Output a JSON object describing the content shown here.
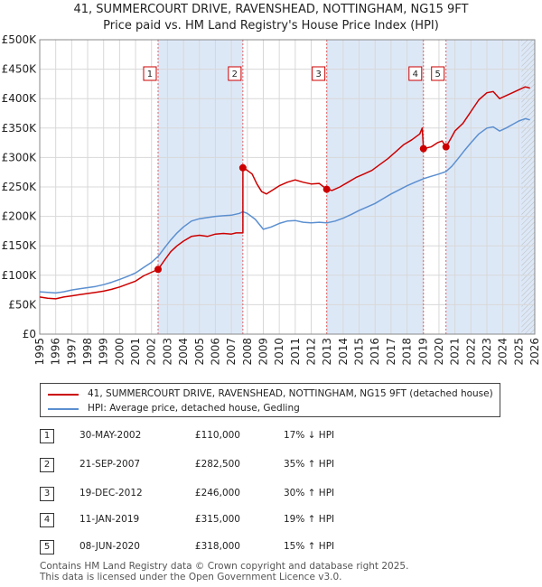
{
  "title_line1": "41, SUMMERCOURT DRIVE, RAVENSHEAD, NOTTINGHAM, NG15 9FT",
  "title_line2": "Price paid vs. HM Land Registry's House Price Index (HPI)",
  "chart_data": {
    "type": "line",
    "ylim": [
      0,
      500000
    ],
    "xlim": [
      1995,
      2026
    ],
    "y_ticks": [
      {
        "value": 0,
        "label": "£0"
      },
      {
        "value": 50000,
        "label": "£50K"
      },
      {
        "value": 100000,
        "label": "£100K"
      },
      {
        "value": 150000,
        "label": "£150K"
      },
      {
        "value": 200000,
        "label": "£200K"
      },
      {
        "value": 250000,
        "label": "£250K"
      },
      {
        "value": 300000,
        "label": "£300K"
      },
      {
        "value": 350000,
        "label": "£350K"
      },
      {
        "value": 400000,
        "label": "£400K"
      },
      {
        "value": 450000,
        "label": "£450K"
      },
      {
        "value": 500000,
        "label": "£500K"
      }
    ],
    "x_ticks": [
      1995,
      1996,
      1997,
      1998,
      1999,
      2000,
      2001,
      2002,
      2003,
      2004,
      2005,
      2006,
      2007,
      2008,
      2009,
      2010,
      2011,
      2012,
      2013,
      2014,
      2015,
      2016,
      2017,
      2018,
      2019,
      2020,
      2021,
      2022,
      2023,
      2024,
      2025,
      2026
    ],
    "colors": {
      "property": "#cc0000",
      "hpi": "#5b8fd0",
      "vline": "#e06060",
      "shade": "#dde8f7"
    },
    "shaded_spans": [
      [
        2002.41,
        2007.72
      ],
      [
        2012.97,
        2019.03
      ],
      [
        2020.44,
        2026
      ]
    ],
    "forecast_from": 2025.17,
    "series": [
      {
        "name": "41, SUMMERCOURT DRIVE, RAVENSHEAD, NOTTINGHAM, NG15 9FT (detached house)",
        "color": "#cc0000",
        "points": [
          [
            1995,
            63000
          ],
          [
            1995.5,
            61000
          ],
          [
            1996,
            60000
          ],
          [
            1996.5,
            63000
          ],
          [
            1997,
            65000
          ],
          [
            1997.5,
            67000
          ],
          [
            1998,
            69000
          ],
          [
            1998.5,
            71000
          ],
          [
            1999,
            73000
          ],
          [
            1999.5,
            76000
          ],
          [
            2000,
            80000
          ],
          [
            2000.5,
            85000
          ],
          [
            2001,
            90000
          ],
          [
            2001.5,
            99000
          ],
          [
            2002,
            105000
          ],
          [
            2002.41,
            110000
          ],
          [
            2002.8,
            125000
          ],
          [
            2003.2,
            140000
          ],
          [
            2003.6,
            150000
          ],
          [
            2004,
            158000
          ],
          [
            2004.5,
            166000
          ],
          [
            2005,
            168000
          ],
          [
            2005.5,
            166000
          ],
          [
            2006,
            170000
          ],
          [
            2006.5,
            171000
          ],
          [
            2007,
            170000
          ],
          [
            2007.3,
            172000
          ],
          [
            2007.72,
            172000
          ],
          [
            2007.72,
            282500
          ],
          [
            2008,
            278000
          ],
          [
            2008.3,
            272000
          ],
          [
            2008.6,
            255000
          ],
          [
            2008.9,
            242000
          ],
          [
            2009.2,
            238000
          ],
          [
            2009.6,
            245000
          ],
          [
            2010,
            252000
          ],
          [
            2010.5,
            258000
          ],
          [
            2011,
            262000
          ],
          [
            2011.5,
            258000
          ],
          [
            2012,
            255000
          ],
          [
            2012.5,
            256000
          ],
          [
            2012.97,
            246000
          ],
          [
            2013.3,
            244000
          ],
          [
            2013.8,
            250000
          ],
          [
            2014.3,
            258000
          ],
          [
            2014.8,
            266000
          ],
          [
            2015.3,
            272000
          ],
          [
            2015.8,
            278000
          ],
          [
            2016.3,
            288000
          ],
          [
            2016.8,
            298000
          ],
          [
            2017.3,
            310000
          ],
          [
            2017.8,
            322000
          ],
          [
            2018.3,
            330000
          ],
          [
            2018.8,
            340000
          ],
          [
            2018.95,
            350000
          ],
          [
            2019.03,
            315000
          ],
          [
            2019.5,
            318000
          ],
          [
            2019.9,
            325000
          ],
          [
            2020.2,
            328000
          ],
          [
            2020.44,
            318000
          ],
          [
            2020.7,
            330000
          ],
          [
            2021,
            345000
          ],
          [
            2021.5,
            358000
          ],
          [
            2022,
            378000
          ],
          [
            2022.5,
            398000
          ],
          [
            2023,
            410000
          ],
          [
            2023.4,
            412000
          ],
          [
            2023.8,
            400000
          ],
          [
            2024.2,
            405000
          ],
          [
            2024.6,
            410000
          ],
          [
            2025,
            415000
          ],
          [
            2025.4,
            420000
          ],
          [
            2025.7,
            418000
          ]
        ]
      },
      {
        "name": "HPI: Average price, detached house, Gedling",
        "color": "#5b8fd0",
        "points": [
          [
            1995,
            72000
          ],
          [
            1995.5,
            71000
          ],
          [
            1996,
            70000
          ],
          [
            1996.5,
            72000
          ],
          [
            1997,
            75000
          ],
          [
            1997.5,
            77000
          ],
          [
            1998,
            79000
          ],
          [
            1998.5,
            81000
          ],
          [
            1999,
            84000
          ],
          [
            1999.5,
            88000
          ],
          [
            2000,
            93000
          ],
          [
            2000.5,
            98000
          ],
          [
            2001,
            104000
          ],
          [
            2001.5,
            113000
          ],
          [
            2002,
            122000
          ],
          [
            2002.41,
            132000
          ],
          [
            2002.8,
            146000
          ],
          [
            2003.2,
            160000
          ],
          [
            2003.6,
            172000
          ],
          [
            2004,
            182000
          ],
          [
            2004.5,
            192000
          ],
          [
            2005,
            196000
          ],
          [
            2005.5,
            198000
          ],
          [
            2006,
            200000
          ],
          [
            2006.5,
            201000
          ],
          [
            2007,
            202000
          ],
          [
            2007.5,
            205000
          ],
          [
            2007.72,
            208000
          ],
          [
            2008,
            205000
          ],
          [
            2008.5,
            195000
          ],
          [
            2009,
            178000
          ],
          [
            2009.5,
            182000
          ],
          [
            2010,
            188000
          ],
          [
            2010.5,
            192000
          ],
          [
            2011,
            193000
          ],
          [
            2011.5,
            190000
          ],
          [
            2012,
            189000
          ],
          [
            2012.5,
            190000
          ],
          [
            2012.97,
            189000
          ],
          [
            2013.5,
            192000
          ],
          [
            2014,
            197000
          ],
          [
            2014.5,
            203000
          ],
          [
            2015,
            210000
          ],
          [
            2015.5,
            216000
          ],
          [
            2016,
            222000
          ],
          [
            2016.5,
            230000
          ],
          [
            2017,
            238000
          ],
          [
            2017.5,
            245000
          ],
          [
            2018,
            252000
          ],
          [
            2018.5,
            258000
          ],
          [
            2019.03,
            264000
          ],
          [
            2019.5,
            268000
          ],
          [
            2020,
            272000
          ],
          [
            2020.44,
            276000
          ],
          [
            2020.8,
            285000
          ],
          [
            2021.2,
            298000
          ],
          [
            2021.6,
            312000
          ],
          [
            2022,
            325000
          ],
          [
            2022.5,
            340000
          ],
          [
            2023,
            350000
          ],
          [
            2023.4,
            352000
          ],
          [
            2023.8,
            345000
          ],
          [
            2024.2,
            350000
          ],
          [
            2024.6,
            356000
          ],
          [
            2025,
            362000
          ],
          [
            2025.4,
            366000
          ],
          [
            2025.7,
            364000
          ]
        ]
      }
    ],
    "sales": [
      {
        "id": "1",
        "x": 2002.41,
        "value": 110000
      },
      {
        "id": "2",
        "x": 2007.72,
        "value": 282500
      },
      {
        "id": "3",
        "x": 2012.97,
        "value": 246000
      },
      {
        "id": "4",
        "x": 2019.03,
        "value": 315000
      },
      {
        "id": "5",
        "x": 2020.44,
        "value": 318000
      }
    ]
  },
  "legend": {
    "property": "41, SUMMERCOURT DRIVE, RAVENSHEAD, NOTTINGHAM, NG15 9FT (detached house)",
    "hpi": "HPI: Average price, detached house, Gedling"
  },
  "table": [
    {
      "id": "1",
      "date": "30-MAY-2002",
      "price": "£110,000",
      "hpi": "17% ↓ HPI"
    },
    {
      "id": "2",
      "date": "21-SEP-2007",
      "price": "£282,500",
      "hpi": "35% ↑ HPI"
    },
    {
      "id": "3",
      "date": "19-DEC-2012",
      "price": "£246,000",
      "hpi": "30% ↑ HPI"
    },
    {
      "id": "4",
      "date": "11-JAN-2019",
      "price": "£315,000",
      "hpi": "19% ↑ HPI"
    },
    {
      "id": "5",
      "date": "08-JUN-2020",
      "price": "£318,000",
      "hpi": "15% ↑ HPI"
    }
  ],
  "footer_line1": "Contains HM Land Registry data © Crown copyright and database right 2025.",
  "footer_line2": "This data is licensed under the Open Government Licence v3.0."
}
